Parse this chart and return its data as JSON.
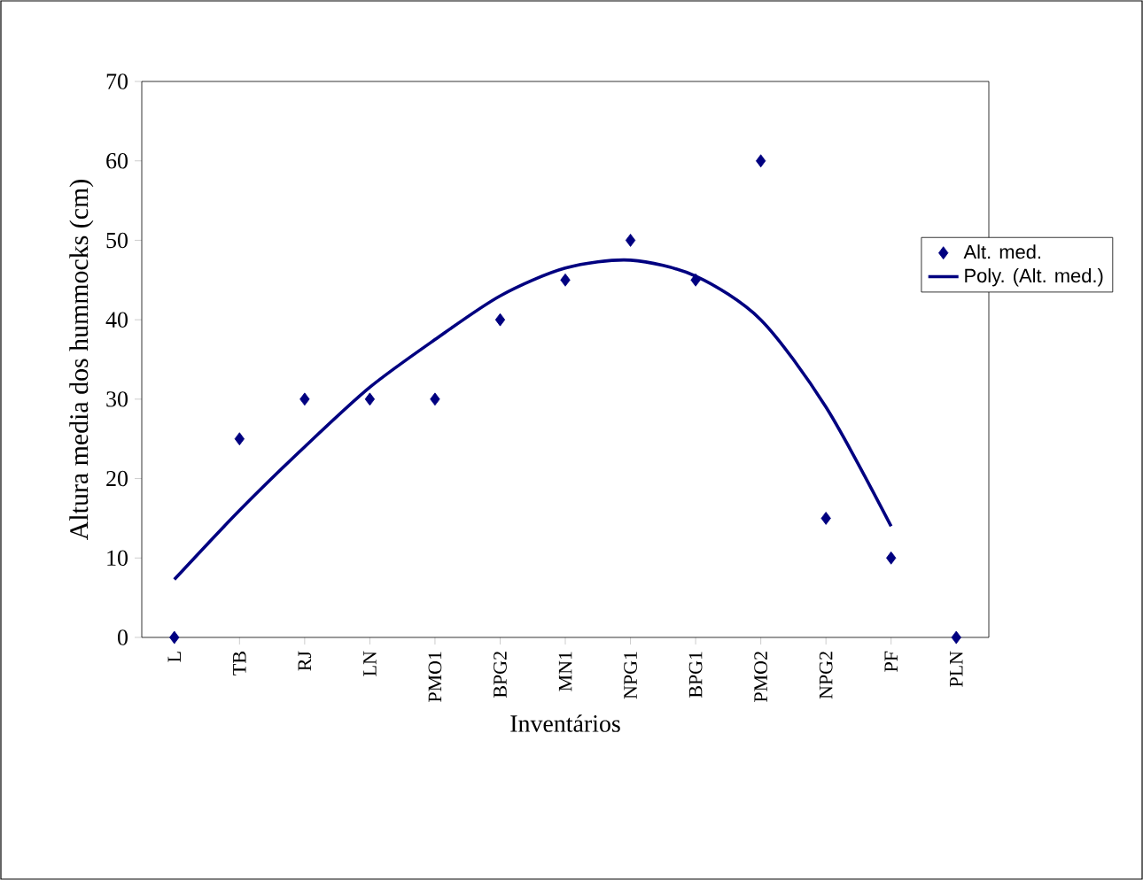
{
  "chart_data": {
    "type": "scatter",
    "xlabel": "Inventários",
    "ylabel": "Altura media dos hummocks (cm)",
    "categories": [
      "L",
      "TB",
      "RJ",
      "LN",
      "PMO1",
      "BPG2",
      "MN1",
      "NPG1",
      "BPG1",
      "PMO2",
      "NPG2",
      "PF",
      "PLN"
    ],
    "series": [
      {
        "name": "Alt. med.",
        "marker": "diamond",
        "color": "#000080",
        "values": [
          0,
          25,
          30,
          30,
          30,
          40,
          45,
          50,
          45,
          60,
          15,
          10,
          0
        ]
      },
      {
        "name": "Poly. (Alt. med.)",
        "type": "line",
        "marker": "none",
        "line_style": "solid",
        "color": "#000080",
        "values": [
          7.3,
          16,
          24,
          31.5,
          37.5,
          43,
          46.5,
          47.5,
          45.5,
          40,
          29,
          14,
          null
        ]
      }
    ],
    "ylim": [
      0,
      70
    ],
    "yticks": [
      0,
      10,
      20,
      30,
      40,
      50,
      60,
      70
    ],
    "grid": false,
    "legend": "right"
  }
}
